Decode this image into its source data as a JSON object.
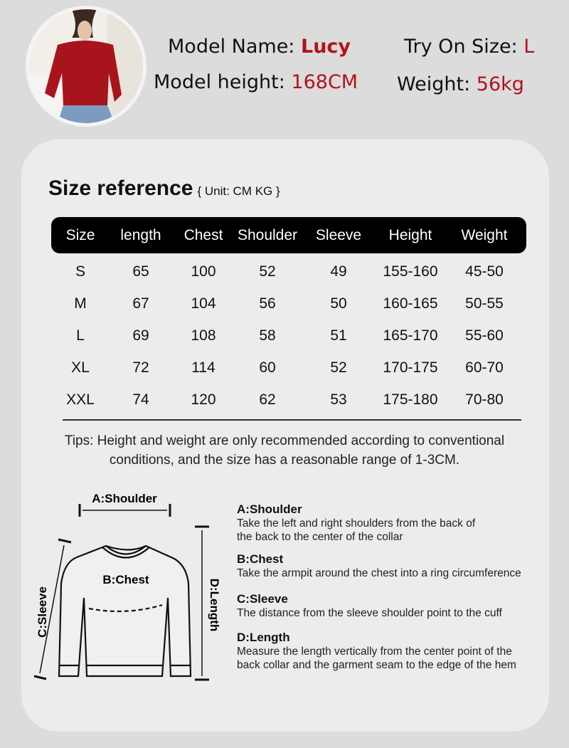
{
  "model": {
    "name_label": "Model Name:",
    "name": "Lucy",
    "height_label": "Model height:",
    "height": "168CM",
    "size_label": "Try On Size:",
    "size": "L",
    "weight_label": "Weight:",
    "weight": "56kg"
  },
  "colors": {
    "accent": "#b3121b",
    "header_bg": "#000000",
    "card_bg": "#ececec",
    "page_bg": "#dcdcdc"
  },
  "size_reference": {
    "title": "Size reference",
    "unit": "{ Unit: CM KG }",
    "columns": [
      "Size",
      "length",
      "Chest",
      "Shoulder",
      "Sleeve",
      "Height",
      "Weight"
    ],
    "rows": [
      [
        "S",
        "65",
        "100",
        "52",
        "49",
        "155-160",
        "45-50"
      ],
      [
        "M",
        "67",
        "104",
        "56",
        "50",
        "160-165",
        "50-55"
      ],
      [
        "L",
        "69",
        "108",
        "58",
        "51",
        "165-170",
        "55-60"
      ],
      [
        "XL",
        "72",
        "114",
        "60",
        "52",
        "170-175",
        "60-70"
      ],
      [
        "XXL",
        "74",
        "120",
        "62",
        "53",
        "175-180",
        "70-80"
      ]
    ],
    "tips": [
      "Tips: Height and weight are only recommended according to conventional",
      "conditions, and the size has a reasonable range of 1-3CM."
    ]
  },
  "diagram": {
    "shoulder": "A:Shoulder",
    "chest": "B:Chest",
    "sleeve": "C:Sleeve",
    "length": "D:Length"
  },
  "measurements": [
    {
      "title": "A:Shoulder",
      "desc": [
        "Take the left and right shoulders from the back of",
        "the back to the center of the collar"
      ]
    },
    {
      "title": "B:Chest",
      "desc": [
        "Take the armpit around the chest into a ring circumference"
      ]
    },
    {
      "title": "C:Sleeve",
      "desc": [
        "The distance from the sleeve shoulder point to the cuff"
      ]
    },
    {
      "title": "D:Length",
      "desc": [
        "Measure the length vertically from the center point of the",
        "back collar and the garment seam to the edge of the hem"
      ]
    }
  ]
}
